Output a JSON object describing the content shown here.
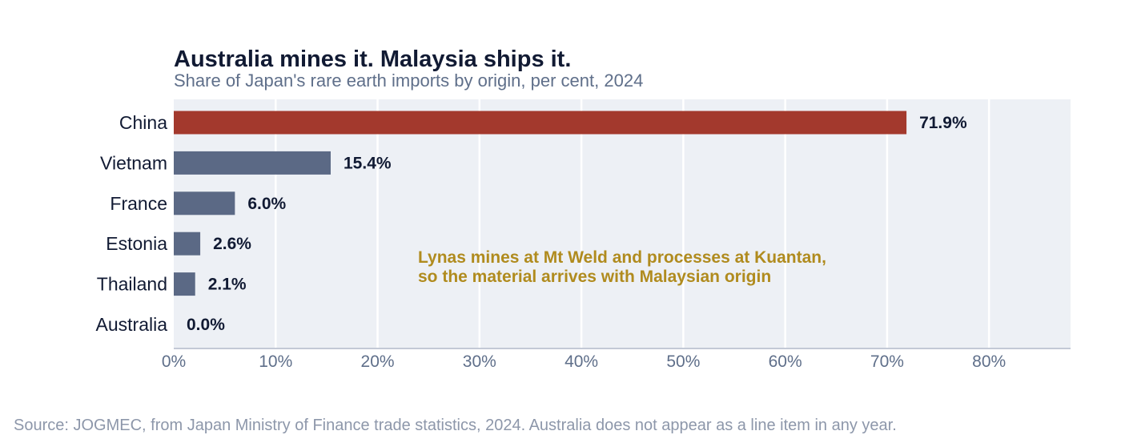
{
  "chart_data": {
    "type": "bar",
    "orientation": "horizontal",
    "title": "Australia mines it. Malaysia ships it.",
    "subtitle": "Share of Japan's rare earth imports by origin, per cent, 2024",
    "categories": [
      "China",
      "Vietnam",
      "France",
      "Estonia",
      "Thailand",
      "Australia"
    ],
    "values": [
      71.9,
      15.4,
      6.0,
      2.6,
      2.1,
      0.0
    ],
    "value_labels": [
      "71.9%",
      "15.4%",
      "6.0%",
      "2.6%",
      "2.1%",
      "0.0%"
    ],
    "highlight_category": "China",
    "xlim": [
      0,
      88
    ],
    "xticks": [
      0,
      10,
      20,
      30,
      40,
      50,
      60,
      70,
      80
    ],
    "xtick_labels": [
      "0%",
      "10%",
      "20%",
      "30%",
      "40%",
      "50%",
      "60%",
      "70%",
      "80%"
    ],
    "grid": "vertical",
    "legend": "none",
    "annotation": {
      "lines": [
        "Lynas mines at Mt Weld and processes at Kuantan,",
        "so the material arrives with Malaysian origin"
      ]
    },
    "colors": {
      "highlight": "#a3392d",
      "bar": "#5b6985",
      "plot_background": "#edf0f5",
      "grid": "#ffffff",
      "axis": "#c3c9d6",
      "annotation": "#b08b1e"
    }
  },
  "source": "Source: JOGMEC, from Japan Ministry of Finance trade statistics, 2024. Australia does not appear as a line item in any year."
}
